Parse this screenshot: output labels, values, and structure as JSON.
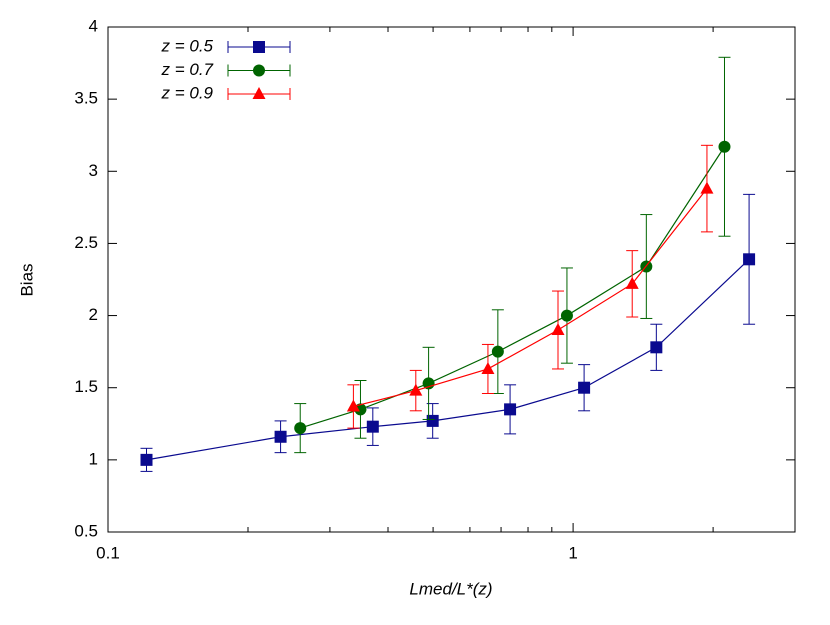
{
  "chart_data": {
    "type": "line",
    "xlabel": "Lmed/L*(z)",
    "ylabel": "Bias",
    "xscale": "log",
    "xlim": [
      0.1,
      3
    ],
    "xticks": [
      0.1,
      1
    ],
    "ylim": [
      0.5,
      4
    ],
    "yticks": [
      0.5,
      1,
      1.5,
      2,
      2.5,
      3,
      3.5,
      4
    ],
    "legend": "upper left",
    "series": [
      {
        "name": "z = 0.5",
        "color": "#0a0a8f",
        "marker": "square",
        "x": [
          0.121,
          0.235,
          0.371,
          0.499,
          0.732,
          1.056,
          1.51,
          2.39
        ],
        "values": [
          1.0,
          1.16,
          1.23,
          1.27,
          1.35,
          1.5,
          1.78,
          2.39
        ],
        "error": [
          0.08,
          0.11,
          0.13,
          0.12,
          0.17,
          0.16,
          0.16,
          0.45
        ]
      },
      {
        "name": "z = 0.7",
        "color": "#006400",
        "marker": "circle",
        "x": [
          0.259,
          0.349,
          0.489,
          0.689,
          0.97,
          1.437,
          2.116
        ],
        "values": [
          1.22,
          1.35,
          1.53,
          1.75,
          2.0,
          2.34,
          3.17
        ],
        "error": [
          0.17,
          0.2,
          0.25,
          0.29,
          0.33,
          0.36,
          0.62
        ]
      },
      {
        "name": "z = 0.9",
        "color": "#ff0000",
        "marker": "triangle",
        "x": [
          0.337,
          0.459,
          0.656,
          0.928,
          1.34,
          1.94
        ],
        "values": [
          1.37,
          1.48,
          1.63,
          1.9,
          2.22,
          2.88
        ],
        "error": [
          0.15,
          0.14,
          0.17,
          0.27,
          0.23,
          0.3
        ]
      }
    ]
  }
}
